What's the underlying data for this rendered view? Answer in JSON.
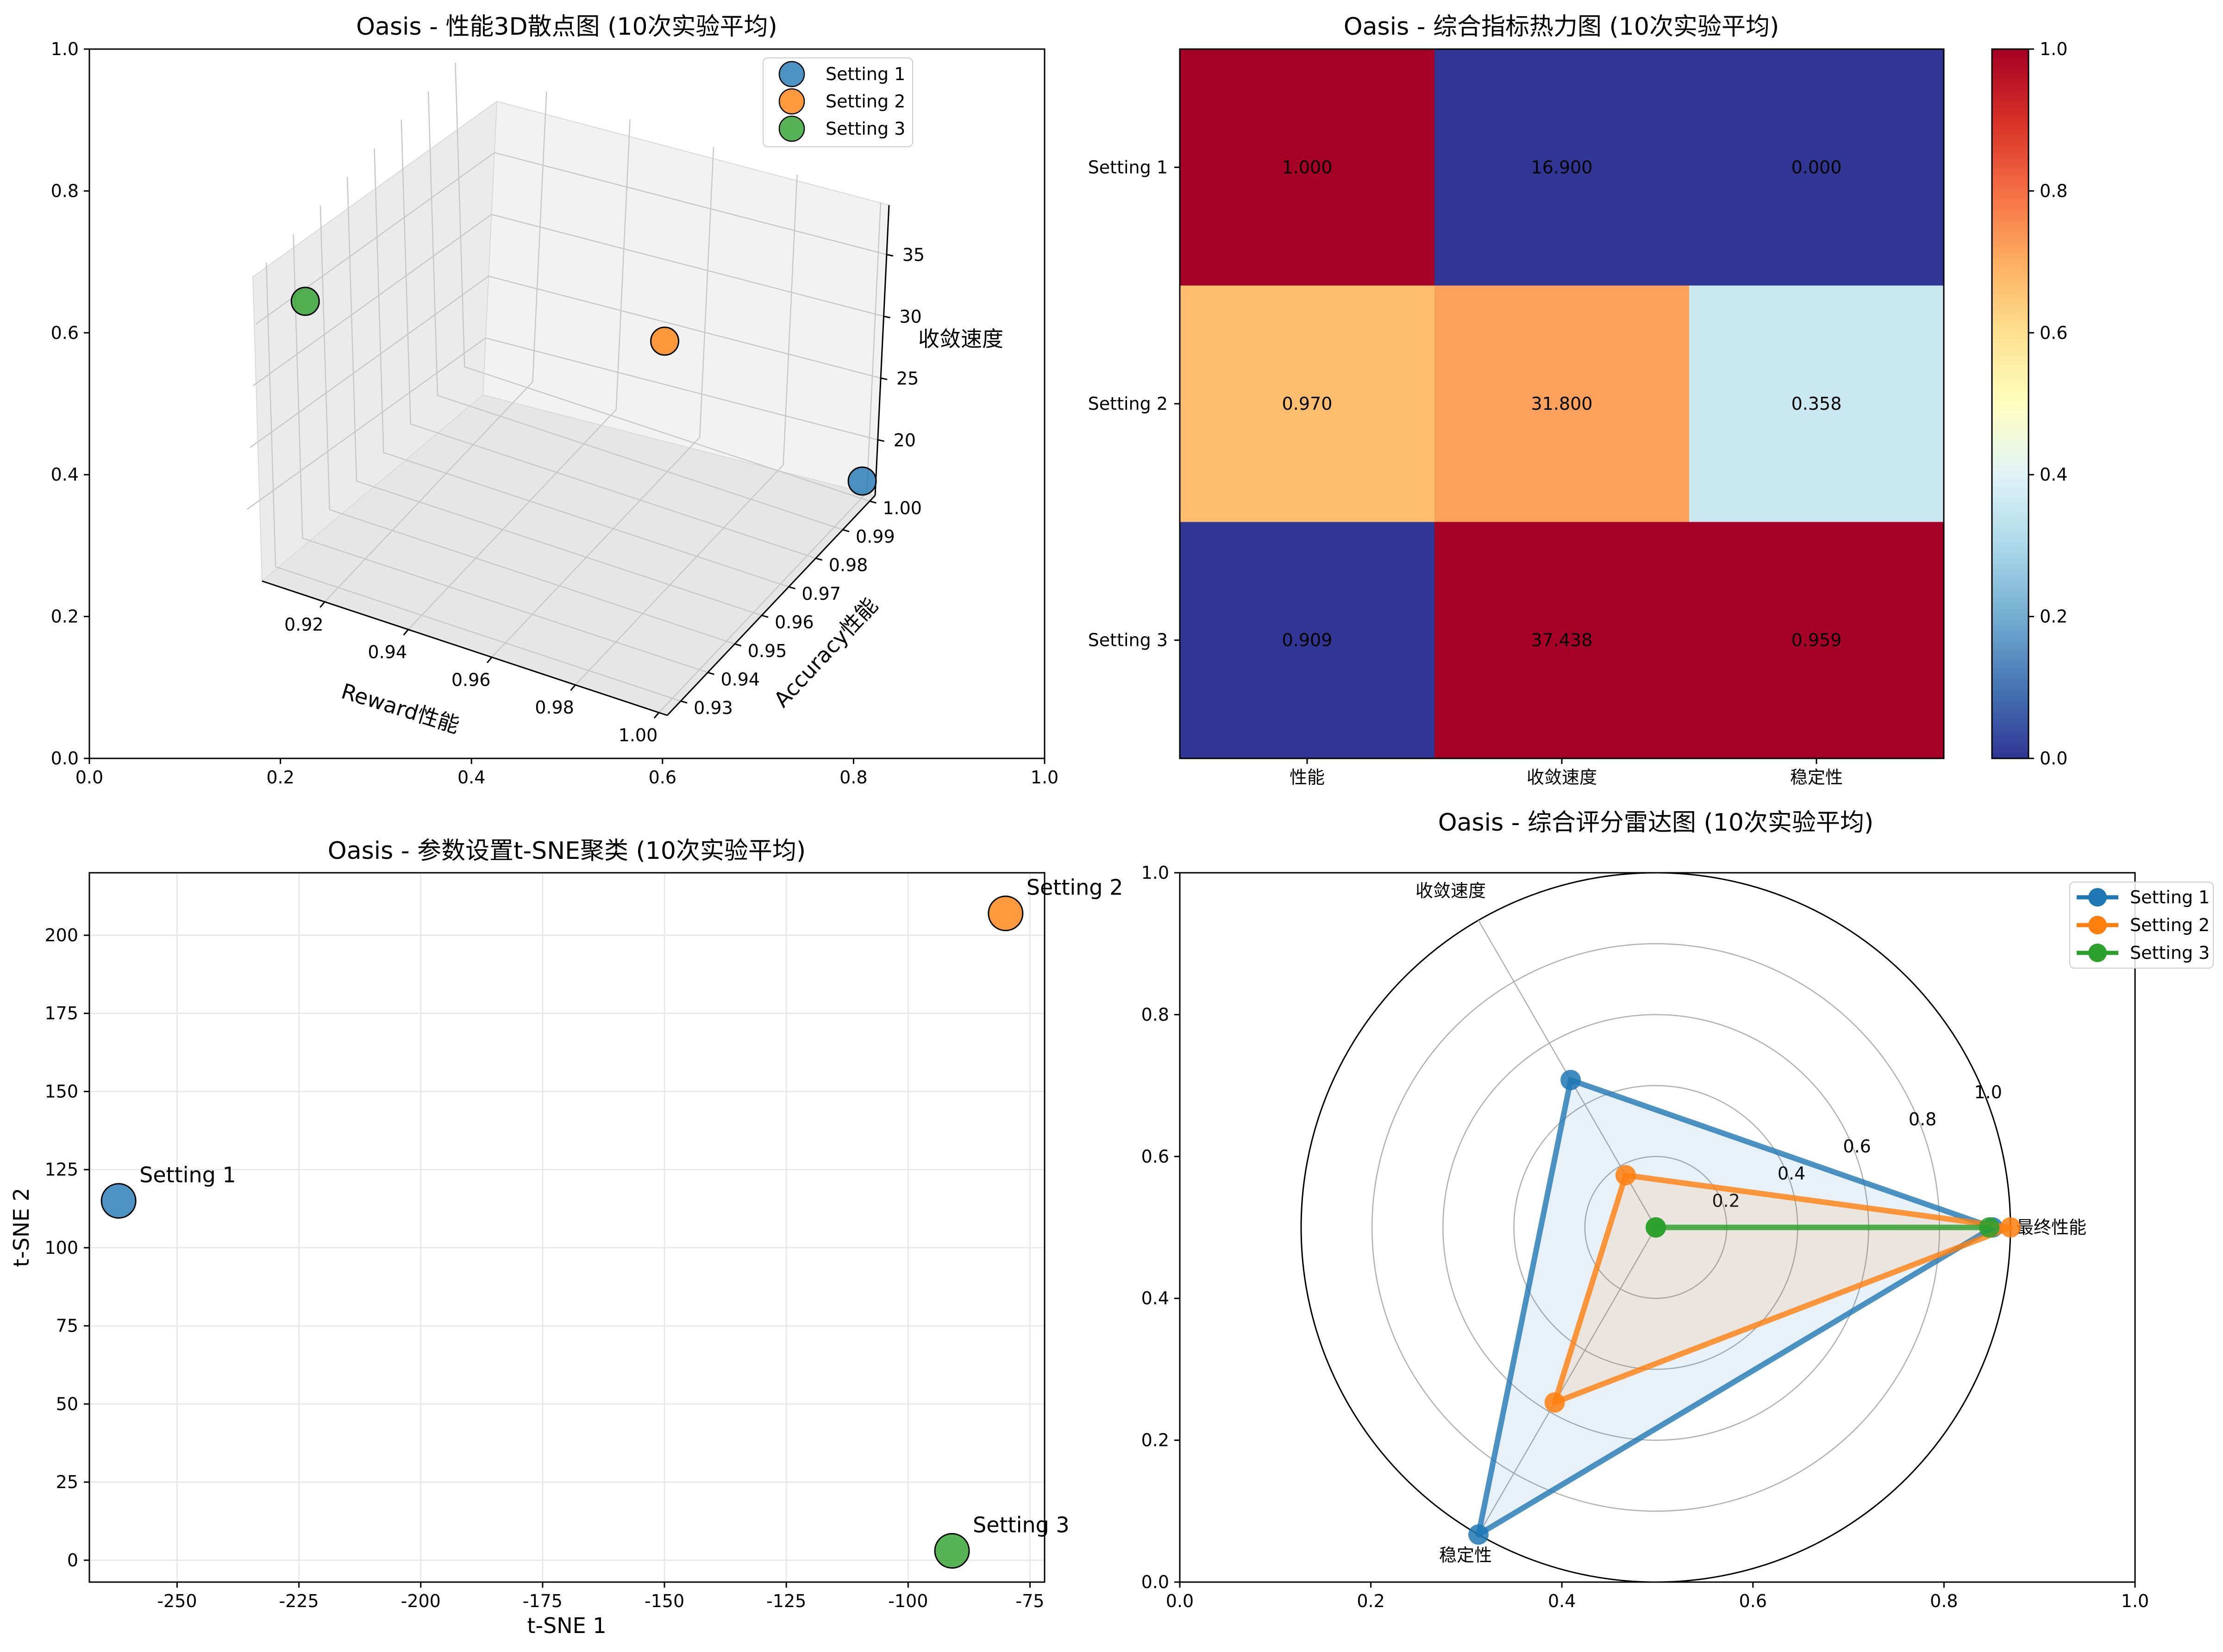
{
  "colors": {
    "setting1": "#1f77b4",
    "setting2": "#ff7f0e",
    "setting3": "#2ca02c",
    "heat_low": "#313695",
    "heat_high": "#a50026"
  },
  "chart_data": [
    {
      "type": "scatter",
      "projection": "3d",
      "title": "Oasis - 性能3D散点图 (10次实验平均)",
      "xlabel": "Reward性能",
      "ylabel": "Accuracy性能",
      "zlabel": "收敛速度",
      "x_ticks": [
        "0.92",
        "0.94",
        "0.96",
        "0.98",
        "1.00"
      ],
      "y_ticks": [
        "0.93",
        "0.94",
        "0.95",
        "0.96",
        "0.97",
        "0.98",
        "0.99",
        "1.00"
      ],
      "z_ticks": [
        "20",
        "25",
        "30",
        "35"
      ],
      "outer_x_ticks": [
        "0.0",
        "0.2",
        "0.4",
        "0.6",
        "0.8",
        "1.0"
      ],
      "outer_y_ticks": [
        "0.0",
        "0.2",
        "0.4",
        "0.6",
        "0.8",
        "1.0"
      ],
      "legend_position": "upper-right",
      "series": [
        {
          "name": "Setting 1",
          "x": 1.0,
          "y": 1.0,
          "z": 16.9
        },
        {
          "name": "Setting 2",
          "x": 0.97,
          "y": 0.97,
          "z": 31.8
        },
        {
          "name": "Setting 3",
          "x": 0.909,
          "y": 0.93,
          "z": 37.438
        }
      ]
    },
    {
      "type": "heatmap",
      "title": "Oasis - 综合指标热力图 (10次实验平均)",
      "rows": [
        "Setting 1",
        "Setting 2",
        "Setting 3"
      ],
      "columns": [
        "性能",
        "收敛速度",
        "稳定性"
      ],
      "normalized": [
        [
          1.0,
          0.0,
          0.0
        ],
        [
          0.67,
          0.72,
          0.358
        ],
        [
          0.0,
          1.0,
          1.0
        ]
      ],
      "labels": [
        [
          "1.000",
          "16.900",
          "0.000"
        ],
        [
          "0.970",
          "31.800",
          "0.358"
        ],
        [
          "0.909",
          "37.438",
          "0.959"
        ]
      ],
      "colorbar_ticks": [
        "0.0",
        "0.2",
        "0.4",
        "0.6",
        "0.8",
        "1.0"
      ],
      "colorbar_range": [
        0,
        1
      ]
    },
    {
      "type": "scatter",
      "title": "Oasis - 参数设置t-SNE聚类 (10次实验平均)",
      "xlabel": "t-SNE 1",
      "ylabel": "t-SNE 2",
      "xlim": [
        -268,
        -72
      ],
      "ylim": [
        -7,
        220
      ],
      "x_ticks": [
        "-250",
        "-225",
        "-200",
        "-175",
        "-150",
        "-125",
        "-100",
        "-75"
      ],
      "y_ticks": [
        "0",
        "25",
        "50",
        "75",
        "100",
        "125",
        "150",
        "175",
        "200"
      ],
      "grid": true,
      "points": [
        {
          "name": "Setting 1",
          "x": -262,
          "y": 115
        },
        {
          "name": "Setting 2",
          "x": -80,
          "y": 207
        },
        {
          "name": "Setting 3",
          "x": -91,
          "y": 3
        }
      ]
    },
    {
      "type": "radar",
      "title": "Oasis - 综合评分雷达图 (10次实验平均)",
      "axes": [
        "最终性能",
        "收敛速度",
        "稳定性"
      ],
      "radial_ticks": [
        "0.2",
        "0.4",
        "0.6",
        "0.8",
        "1.0"
      ],
      "rmax": 1.0,
      "outer_x_ticks": [
        "0.0",
        "0.2",
        "0.4",
        "0.6",
        "0.8",
        "1.0"
      ],
      "outer_y_ticks": [
        "0.0",
        "0.2",
        "0.4",
        "0.6",
        "0.8",
        "1.0"
      ],
      "legend_position": "upper-right",
      "series": [
        {
          "name": "Setting 1",
          "values": [
            0.95,
            0.48,
            1.0
          ]
        },
        {
          "name": "Setting 2",
          "values": [
            1.0,
            0.17,
            0.57
          ]
        },
        {
          "name": "Setting 3",
          "values": [
            0.94,
            0.0,
            0.0
          ]
        }
      ]
    }
  ]
}
